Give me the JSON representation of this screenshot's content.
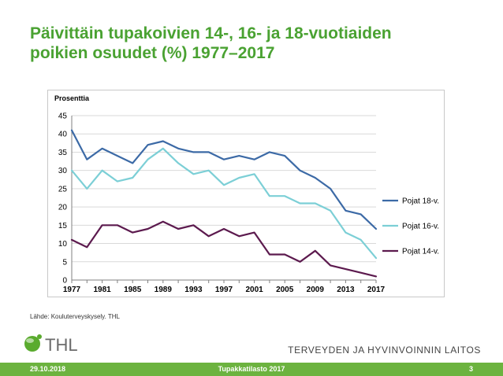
{
  "slide": {
    "title_line1": "Päivittäin tupakoivien 14-, 16- ja 18-vuotiaiden",
    "title_line2": "poikien osuudet (%) 1977–2017",
    "source": "Lähde: Kouluterveyskysely. THL",
    "logo_text": "THL",
    "institute": "TERVEYDEN JA HYVINVOINNIN LAITOS",
    "footer_date": "29.10.2018",
    "footer_title": "Tupakkatilasto 2017",
    "footer_page": "3"
  },
  "colors": {
    "title": "#4aa232",
    "footer_bar": "#6cb33f",
    "logo_green": "#5aab2e",
    "grid": "#d9d9d9",
    "axis": "#808080"
  },
  "chart_data": {
    "type": "line",
    "title": "",
    "ylabel": "Prosenttia",
    "xlabel": "",
    "ylim": [
      0,
      45
    ],
    "xlim": [
      1977,
      2017
    ],
    "yticks": [
      "0",
      "5",
      "10",
      "15",
      "20",
      "25",
      "30",
      "35",
      "40",
      "45"
    ],
    "xticks": [
      "1977",
      "1981",
      "1985",
      "1989",
      "1993",
      "1997",
      "2001",
      "2005",
      "2009",
      "2013",
      "2017"
    ],
    "grid": true,
    "legend_position": "right",
    "x": [
      1977,
      1979,
      1981,
      1983,
      1985,
      1987,
      1989,
      1991,
      1993,
      1995,
      1997,
      1999,
      2001,
      2003,
      2005,
      2007,
      2009,
      2011,
      2013,
      2015,
      2017
    ],
    "series": [
      {
        "name": "Pojat 18-v.",
        "color": "#3c6aa6",
        "values": [
          41,
          33,
          36,
          34,
          32,
          37,
          38,
          36,
          35,
          35,
          33,
          34,
          33,
          35,
          34,
          30,
          28,
          25,
          19,
          18,
          14
        ]
      },
      {
        "name": "Pojat 16-v.",
        "color": "#7ccfd6",
        "values": [
          30,
          25,
          30,
          27,
          28,
          33,
          36,
          32,
          29,
          30,
          26,
          28,
          29,
          23,
          23,
          21,
          21,
          19,
          13,
          11,
          6
        ]
      },
      {
        "name": "Pojat 14-v.",
        "color": "#5c1a4e",
        "values": [
          11,
          9,
          15,
          15,
          13,
          14,
          16,
          14,
          15,
          12,
          14,
          12,
          13,
          7,
          7,
          5,
          8,
          4,
          3,
          2,
          1
        ]
      }
    ]
  }
}
